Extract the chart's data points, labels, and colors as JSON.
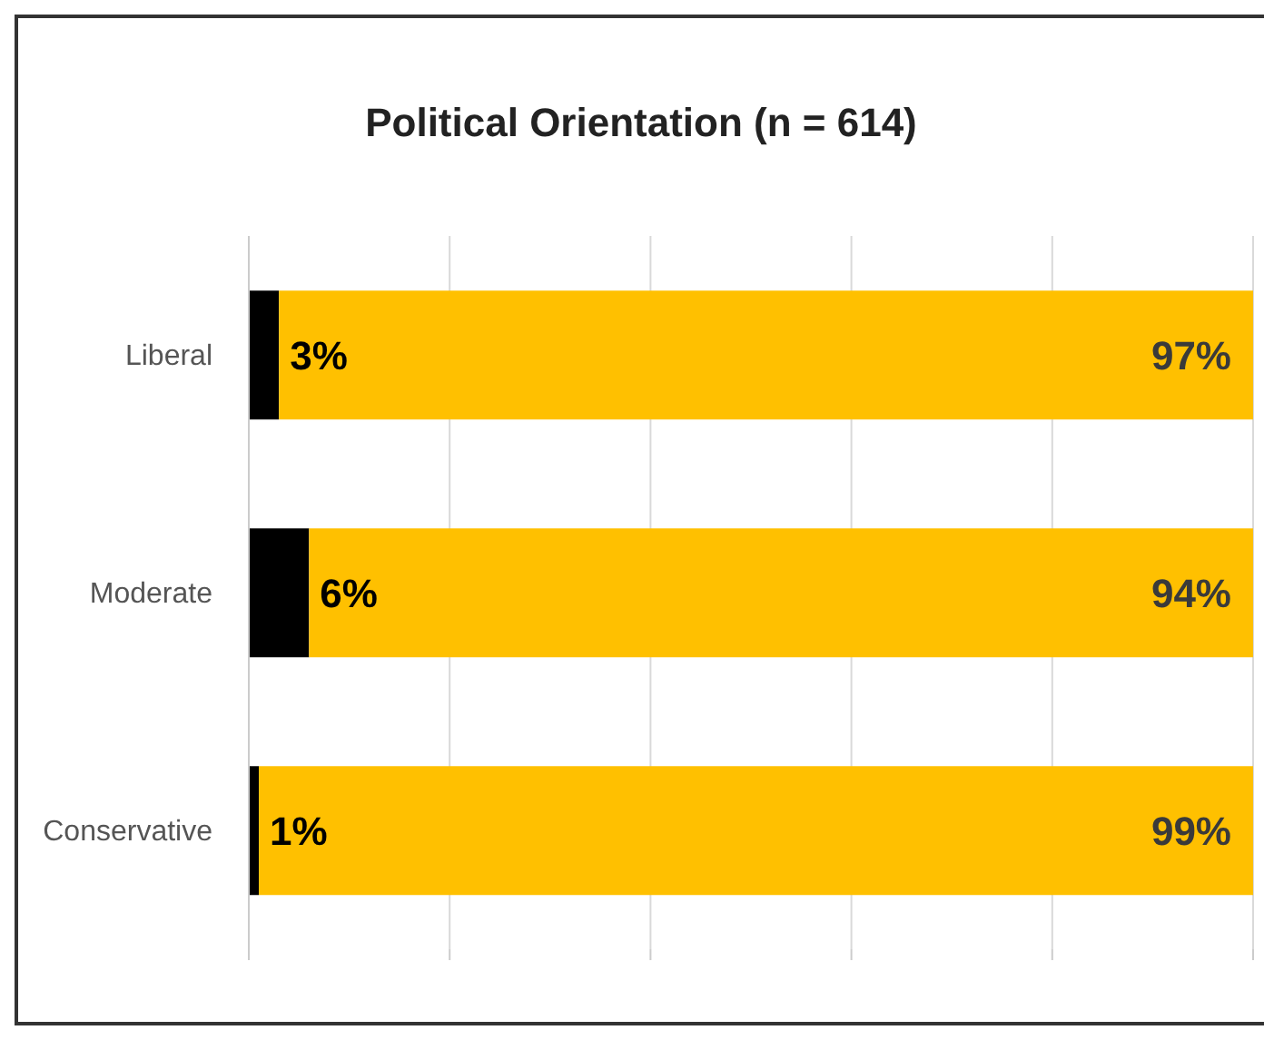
{
  "chart_data": {
    "type": "bar",
    "orientation": "horizontal",
    "stacked": true,
    "title": "Political Orientation (n = 614)",
    "categories": [
      "Liberal",
      "Moderate",
      "Conservative"
    ],
    "series": [
      {
        "color": "#000000",
        "values": [
          3,
          6,
          1
        ],
        "value_labels": [
          "3%",
          "6%",
          "1%"
        ]
      },
      {
        "color": "#ffc000",
        "values": [
          97,
          94,
          99
        ],
        "value_labels": [
          "97%",
          "94%",
          "99%"
        ]
      }
    ],
    "xlim": [
      0,
      100
    ],
    "xticks": [
      {
        "value": 0,
        "label": null
      },
      {
        "value": 20,
        "label": null
      },
      {
        "value": 40,
        "label": null
      },
      {
        "value": 60,
        "label": null
      },
      {
        "value": 80,
        "label": null
      },
      {
        "value": 100,
        "label": null
      }
    ],
    "grid": "x",
    "tick_labels": "y"
  }
}
